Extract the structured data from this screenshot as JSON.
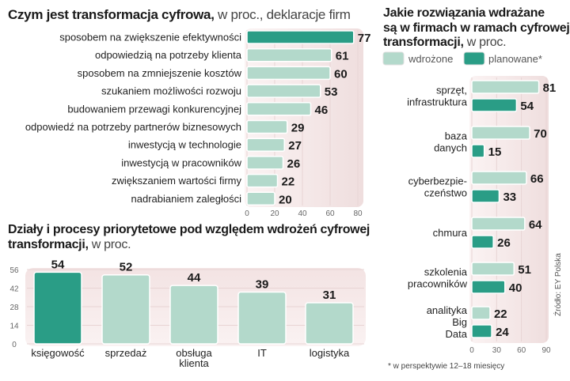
{
  "colors": {
    "implemented": "#b3d9cb",
    "planned": "#2a9d86",
    "highlight": "#2a9d86",
    "panel": "#f2e4e4"
  },
  "chart_data": [
    {
      "type": "bar",
      "orientation": "horizontal",
      "title_bold": "Czym jest transformacja cyfrowa,",
      "title_rest": " w proc., deklaracje firm",
      "categories": [
        "sposobem na zwiększenie efektywności",
        "odpowiedzią na potrzeby klienta",
        "sposobem na zmniejszenie kosztów",
        "szukaniem możliwości rozwoju",
        "budowaniem przewagi konkurencyjnej",
        "odpowiedź na potrzeby partnerów biznesowych",
        "inwestycją w technologie",
        "inwestycją w pracowników",
        "zwiększaniem wartości firmy",
        "nadrabianiem zaległości"
      ],
      "values": [
        77,
        61,
        60,
        53,
        46,
        29,
        27,
        26,
        22,
        20
      ],
      "xlim": [
        0,
        80
      ],
      "xticks": [
        "0",
        "20",
        "40",
        "60",
        "80"
      ]
    },
    {
      "type": "bar",
      "orientation": "vertical",
      "title_bold1": "Działy i procesy priorytetowe pod względem wdrożeń cyfrowej",
      "title_bold2": "transformacji,",
      "title_rest": " w proc.",
      "categories": [
        [
          "księgowość"
        ],
        [
          "sprzedaż"
        ],
        [
          "obsługa",
          "klienta"
        ],
        [
          "IT"
        ],
        [
          "logistyka"
        ]
      ],
      "values": [
        54,
        52,
        44,
        39,
        31
      ],
      "ylim": [
        0,
        56
      ],
      "yticks": [
        "0",
        "14",
        "28",
        "42",
        "56"
      ]
    },
    {
      "type": "bar",
      "orientation": "horizontal-grouped",
      "title_bold1": "Jakie rozwiązania wdrażane",
      "title_bold2": "są w firmach w ramach cyfrowej",
      "title_bold3": "transformacji,",
      "title_rest": " w proc.",
      "legend": [
        "wdrożone",
        "planowane*"
      ],
      "categories": [
        [
          "sprzęt,",
          "infrastruktura"
        ],
        [
          "baza",
          "danych"
        ],
        [
          "cyberbezpie-",
          "czeństwo"
        ],
        [
          "chmura"
        ],
        [
          "szkolenia",
          "pracowników"
        ],
        [
          "analityka",
          "Big",
          "Data"
        ]
      ],
      "series": [
        {
          "name": "wdrożone",
          "values": [
            81,
            70,
            66,
            64,
            51,
            22
          ]
        },
        {
          "name": "planowane*",
          "values": [
            54,
            15,
            33,
            26,
            40,
            24
          ]
        }
      ],
      "xlim": [
        0,
        90
      ],
      "xticks": [
        "0",
        "30",
        "60",
        "90"
      ],
      "footnote": "* w perspektywie 12–18 miesięcy",
      "source": "Źródło: EY Polska"
    }
  ]
}
